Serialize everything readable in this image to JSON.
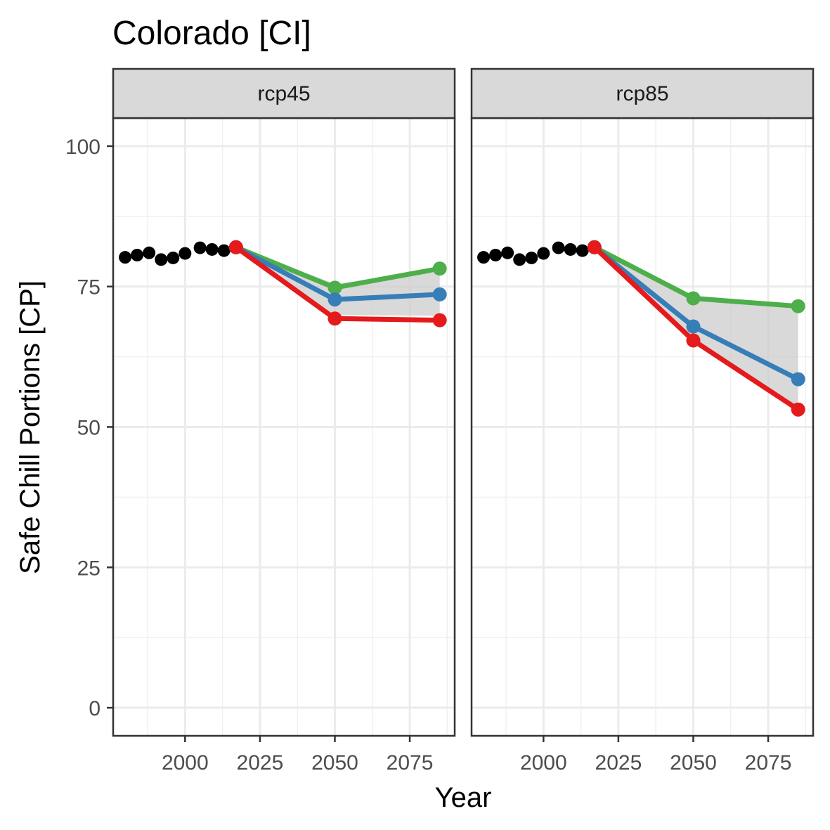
{
  "chart_data": {
    "type": "line",
    "title": "Colorado [CI]",
    "xlabel": "Year",
    "ylabel": "Safe Chill Portions [CP]",
    "xlim": [
      1976,
      2090
    ],
    "ylim": [
      -5,
      105
    ],
    "x_ticks": [
      2000,
      2025,
      2050,
      2075
    ],
    "y_ticks": [
      0,
      25,
      50,
      75,
      100
    ],
    "grid": true,
    "legend": "none",
    "colors": {
      "historic": "#000000",
      "high": "#4DAF4A",
      "mid": "#377EB8",
      "low": "#E41A1C",
      "band": "#cccccc"
    },
    "historic": {
      "x": [
        1980,
        1984,
        1988,
        1992,
        1996,
        2000,
        2005,
        2009,
        2013,
        2017
      ],
      "y": [
        80.2,
        80.6,
        81.0,
        79.8,
        80.1,
        80.9,
        81.9,
        81.6,
        81.4,
        82.0
      ]
    },
    "panels": [
      {
        "strip": "rcp45",
        "x": [
          2017,
          2050,
          2085
        ],
        "series": [
          {
            "key": "high",
            "values": [
              82.0,
              74.8,
              78.2
            ]
          },
          {
            "key": "mid",
            "values": [
              82.0,
              72.7,
              73.6
            ]
          },
          {
            "key": "low",
            "values": [
              82.0,
              69.3,
              69.0
            ]
          }
        ],
        "band": {
          "x": [
            2017,
            2050,
            2085
          ],
          "lower": [
            82.0,
            69.9,
            69.8
          ],
          "upper": [
            82.0,
            75.5,
            77.6
          ]
        }
      },
      {
        "strip": "rcp85",
        "x": [
          2017,
          2050,
          2085
        ],
        "series": [
          {
            "key": "high",
            "values": [
              82.0,
              72.9,
              71.5
            ]
          },
          {
            "key": "mid",
            "values": [
              82.0,
              67.9,
              58.5
            ]
          },
          {
            "key": "low",
            "values": [
              82.0,
              65.4,
              53.1
            ]
          }
        ],
        "band": {
          "x": [
            2017,
            2050,
            2085
          ],
          "lower": [
            82.0,
            65.5,
            53.6
          ],
          "upper": [
            82.0,
            73.4,
            71.8
          ]
        }
      }
    ]
  }
}
